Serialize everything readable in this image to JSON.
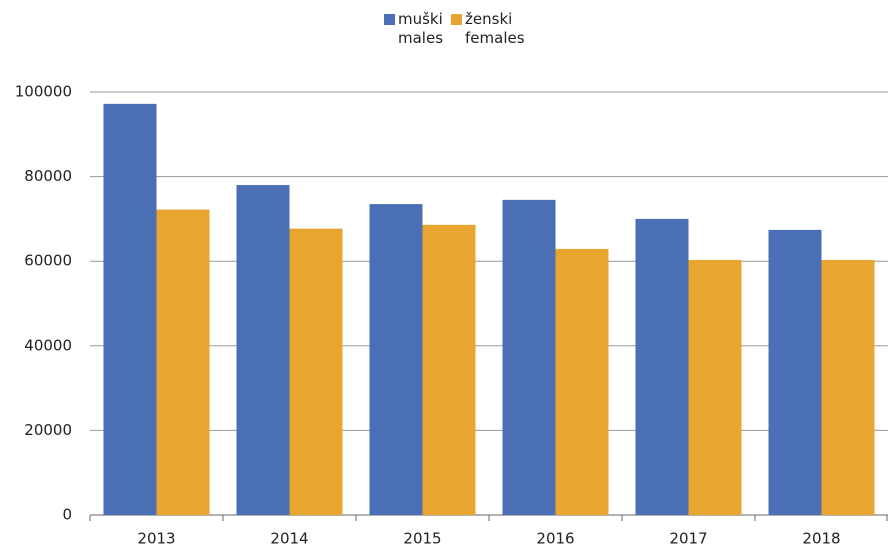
{
  "chart_data": {
    "type": "bar",
    "categories": [
      "2013",
      "2014",
      "2015",
      "2016",
      "2017",
      "2018"
    ],
    "series": [
      {
        "name": "muški\nmales",
        "color": "#4a6fb5",
        "values": [
          97200,
          78000,
          73500,
          74500,
          70000,
          67400
        ]
      },
      {
        "name": "ženski\nfemales",
        "color": "#e8a530",
        "values": [
          72200,
          67700,
          68600,
          62900,
          60300,
          60300
        ]
      }
    ],
    "ylim": [
      0,
      100000
    ],
    "yticks": [
      0,
      20000,
      40000,
      60000,
      80000,
      100000
    ],
    "grid": true,
    "legend": "top"
  }
}
